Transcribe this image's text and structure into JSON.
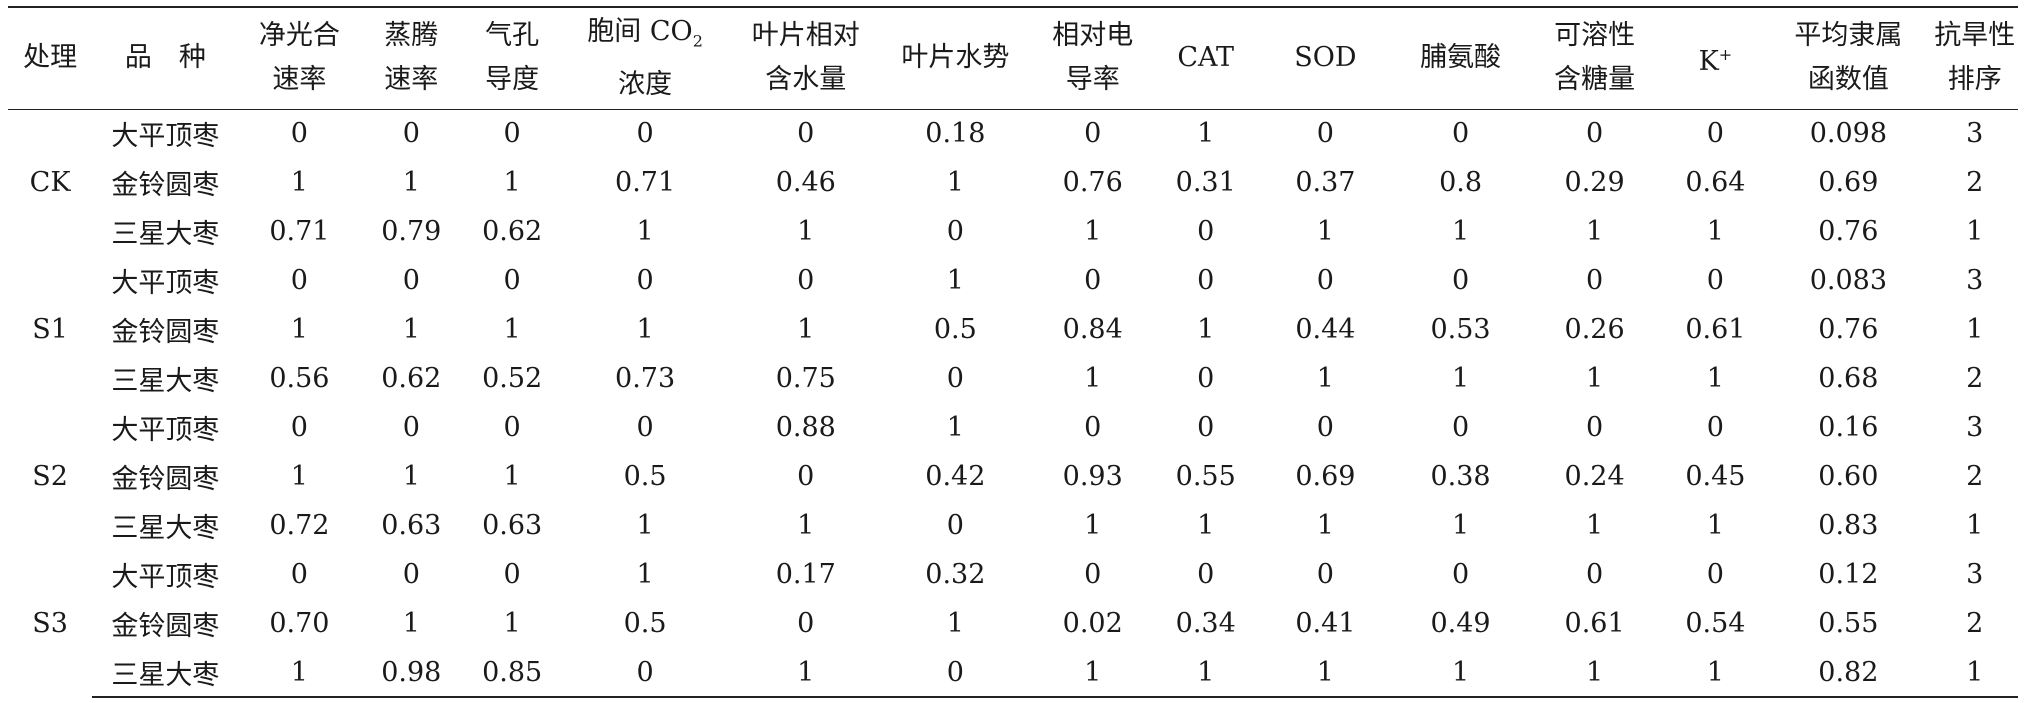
{
  "headers": [
    {
      "line1": "处理",
      "line2": ""
    },
    {
      "line1": "品　种",
      "line2": ""
    },
    {
      "line1": "净光合",
      "line2": "速率"
    },
    {
      "line1": "蒸腾",
      "line2": "速率"
    },
    {
      "line1": "气孔",
      "line2": "导度"
    },
    {
      "line1": "胞间 CO",
      "sub": "2",
      "line2": "浓度"
    },
    {
      "line1": "叶片相对",
      "line2": "含水量"
    },
    {
      "line1": "叶片水势",
      "line2": ""
    },
    {
      "line1": "相对电",
      "line2": "导率"
    },
    {
      "line1": "CAT",
      "line2": ""
    },
    {
      "line1": "SOD",
      "line2": ""
    },
    {
      "line1": "脯氨酸",
      "line2": ""
    },
    {
      "line1": "可溶性",
      "line2": "含糖量"
    },
    {
      "line1": "K",
      "sup": "+",
      "line2": ""
    },
    {
      "line1": "平均隶属",
      "line2": "函数值"
    },
    {
      "line1": "抗旱性",
      "line2": "排序"
    }
  ],
  "groups": [
    {
      "treatment": "CK",
      "rows": [
        {
          "variety": "大平顶枣",
          "values": [
            "0",
            "0",
            "0",
            "0",
            "0",
            "0.18",
            "0",
            "1",
            "0",
            "0",
            "0",
            "0",
            "0.098",
            "3"
          ]
        },
        {
          "variety": "金铃圆枣",
          "values": [
            "1",
            "1",
            "1",
            "0.71",
            "0.46",
            "1",
            "0.76",
            "0.31",
            "0.37",
            "0.8",
            "0.29",
            "0.64",
            "0.69",
            "2"
          ]
        },
        {
          "variety": "三星大枣",
          "values": [
            "0.71",
            "0.79",
            "0.62",
            "1",
            "1",
            "0",
            "1",
            "0",
            "1",
            "1",
            "1",
            "1",
            "0.76",
            "1"
          ]
        }
      ]
    },
    {
      "treatment": "S1",
      "rows": [
        {
          "variety": "大平顶枣",
          "values": [
            "0",
            "0",
            "0",
            "0",
            "0",
            "1",
            "0",
            "0",
            "0",
            "0",
            "0",
            "0",
            "0.083",
            "3"
          ]
        },
        {
          "variety": "金铃圆枣",
          "values": [
            "1",
            "1",
            "1",
            "1",
            "1",
            "0.5",
            "0.84",
            "1",
            "0.44",
            "0.53",
            "0.26",
            "0.61",
            "0.76",
            "1"
          ]
        },
        {
          "variety": "三星大枣",
          "values": [
            "0.56",
            "0.62",
            "0.52",
            "0.73",
            "0.75",
            "0",
            "1",
            "0",
            "1",
            "1",
            "1",
            "1",
            "0.68",
            "2"
          ]
        }
      ]
    },
    {
      "treatment": "S2",
      "rows": [
        {
          "variety": "大平顶枣",
          "values": [
            "0",
            "0",
            "0",
            "0",
            "0.88",
            "1",
            "0",
            "0",
            "0",
            "0",
            "0",
            "0",
            "0.16",
            "3"
          ]
        },
        {
          "variety": "金铃圆枣",
          "values": [
            "1",
            "1",
            "1",
            "0.5",
            "0",
            "0.42",
            "0.93",
            "0.55",
            "0.69",
            "0.38",
            "0.24",
            "0.45",
            "0.60",
            "2"
          ]
        },
        {
          "variety": "三星大枣",
          "values": [
            "0.72",
            "0.63",
            "0.63",
            "1",
            "1",
            "0",
            "1",
            "1",
            "1",
            "1",
            "1",
            "1",
            "0.83",
            "1"
          ]
        }
      ]
    },
    {
      "treatment": "S3",
      "rows": [
        {
          "variety": "大平顶枣",
          "values": [
            "0",
            "0",
            "0",
            "1",
            "0.17",
            "0.32",
            "0",
            "0",
            "0",
            "0",
            "0",
            "0",
            "0.12",
            "3"
          ]
        },
        {
          "variety": "金铃圆枣",
          "values": [
            "0.70",
            "1",
            "1",
            "0.5",
            "0",
            "1",
            "0.02",
            "0.34",
            "0.41",
            "0.49",
            "0.61",
            "0.54",
            "0.55",
            "2"
          ]
        },
        {
          "variety": "三星大枣",
          "values": [
            "1",
            "0.98",
            "0.85",
            "0",
            "1",
            "0",
            "1",
            "1",
            "1",
            "1",
            "1",
            "1",
            "0.82",
            "1"
          ]
        }
      ]
    }
  ]
}
